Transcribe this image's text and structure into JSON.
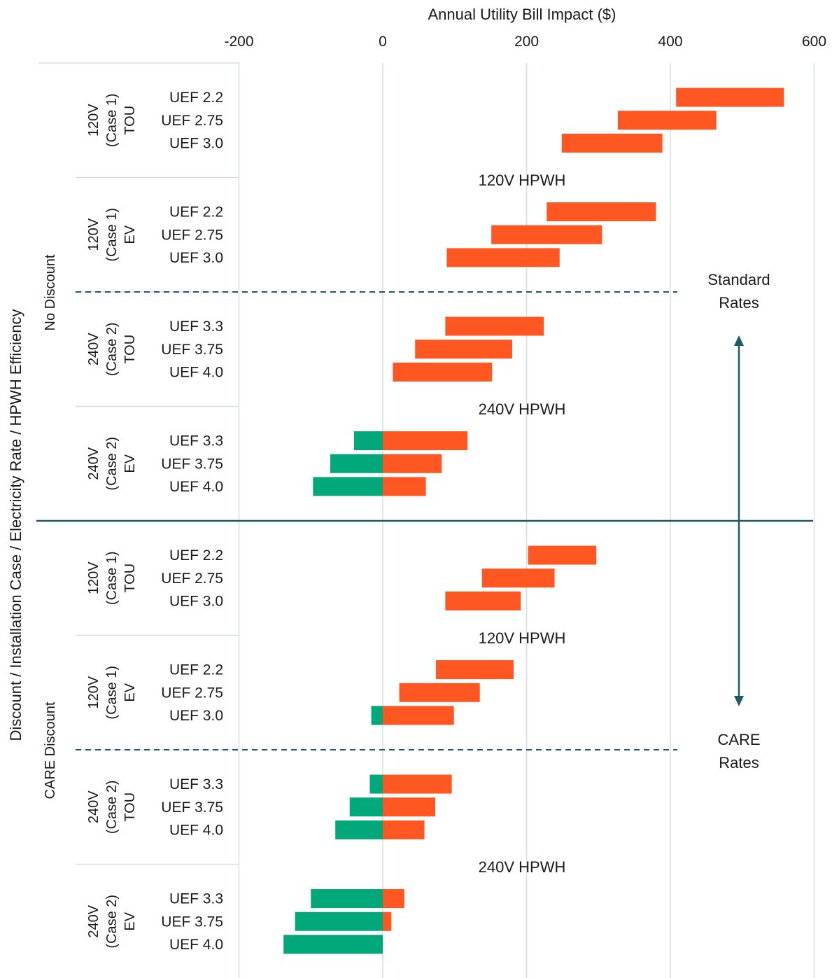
{
  "chart_data": {
    "type": "bar",
    "orientation": "horizontal",
    "xlabel": "Annual Utility Bill Impact ($)",
    "ylabel": "Discount / Installation Case / Electricity Rate / HPWH Efficiency",
    "xlim": [
      -200,
      600
    ],
    "xticks": [
      -200,
      0,
      200,
      400,
      600
    ],
    "grid": true,
    "colors": {
      "cost": "#ff5722",
      "savings": "#00a87a",
      "divider": "#1f5a66",
      "grid": "#d6dde6"
    },
    "discount_labels": [
      "No Discount",
      "CARE Discount"
    ],
    "band_labels": [
      "120V HPWH",
      "240V HPWH",
      "120V HPWH",
      "240V HPWH"
    ],
    "rate_labels": {
      "standard": [
        "Standard",
        "Rates"
      ],
      "care": [
        "CARE",
        "Rates"
      ]
    },
    "groups": [
      {
        "label": [
          "120V",
          "(Case 1)",
          "TOU"
        ],
        "bars": [
          {
            "category": "UEF 2.2",
            "low": 408,
            "high": 558
          },
          {
            "category": "UEF 2.75",
            "low": 327,
            "high": 464
          },
          {
            "category": "UEF 3.0",
            "low": 249,
            "high": 389
          }
        ]
      },
      {
        "label": [
          "120V",
          "(Case 1)",
          "EV"
        ],
        "bars": [
          {
            "category": "UEF 2.2",
            "low": 228,
            "high": 380
          },
          {
            "category": "UEF 2.75",
            "low": 151,
            "high": 305
          },
          {
            "category": "UEF 3.0",
            "low": 89,
            "high": 246
          }
        ]
      },
      {
        "label": [
          "240V",
          "(Case 2)",
          "TOU"
        ],
        "bars": [
          {
            "category": "UEF 3.3",
            "low": 87,
            "high": 224
          },
          {
            "category": "UEF 3.75",
            "low": 45,
            "high": 180
          },
          {
            "category": "UEF 4.0",
            "low": 14,
            "high": 152
          }
        ]
      },
      {
        "label": [
          "240V",
          "(Case 2)",
          "EV"
        ],
        "bars": [
          {
            "category": "UEF 3.3",
            "low": -40,
            "high": 118
          },
          {
            "category": "UEF 3.75",
            "low": -73,
            "high": 82
          },
          {
            "category": "UEF 4.0",
            "low": -97,
            "high": 60
          }
        ]
      },
      {
        "label": [
          "120V",
          "(Case 1)",
          "TOU"
        ],
        "bars": [
          {
            "category": "UEF 2.2",
            "low": 202,
            "high": 297
          },
          {
            "category": "UEF 2.75",
            "low": 138,
            "high": 239
          },
          {
            "category": "UEF 3.0",
            "low": 87,
            "high": 192
          }
        ]
      },
      {
        "label": [
          "120V",
          "(Case 1)",
          "EV"
        ],
        "bars": [
          {
            "category": "UEF 2.2",
            "low": 74,
            "high": 182
          },
          {
            "category": "UEF 2.75",
            "low": 23,
            "high": 135
          },
          {
            "category": "UEF 3.0",
            "low": -16,
            "high": 99
          }
        ]
      },
      {
        "label": [
          "240V",
          "(Case 2)",
          "TOU"
        ],
        "bars": [
          {
            "category": "UEF 3.3",
            "low": -18,
            "high": 96
          },
          {
            "category": "UEF 3.75",
            "low": -46,
            "high": 73
          },
          {
            "category": "UEF 4.0",
            "low": -66,
            "high": 58
          }
        ]
      },
      {
        "label": [
          "240V",
          "(Case 2)",
          "EV"
        ],
        "bars": [
          {
            "category": "UEF 3.3",
            "low": -100,
            "high": 30
          },
          {
            "category": "UEF 3.75",
            "low": -122,
            "high": 12
          },
          {
            "category": "UEF 4.0",
            "low": -138,
            "high": 0
          }
        ]
      }
    ]
  }
}
